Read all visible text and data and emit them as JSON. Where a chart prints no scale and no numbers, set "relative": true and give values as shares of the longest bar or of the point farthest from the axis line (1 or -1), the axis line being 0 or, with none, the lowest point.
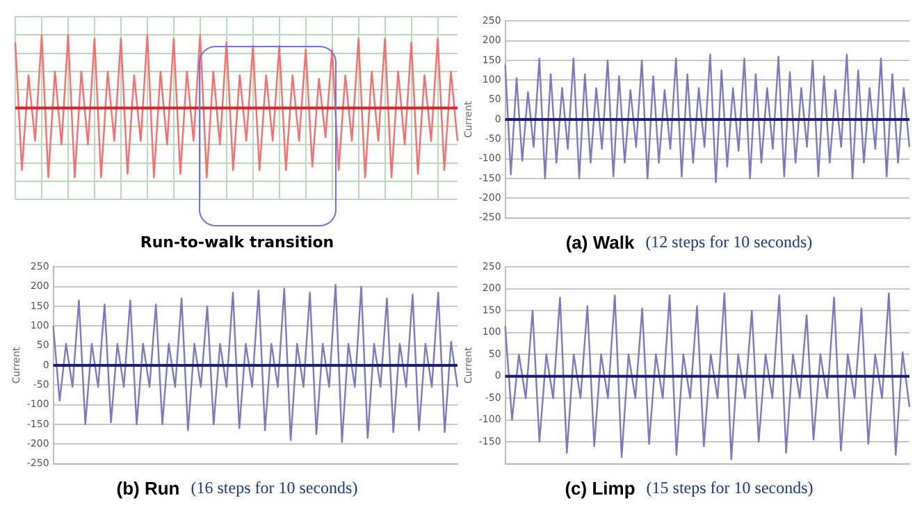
{
  "chart_data": [
    {
      "type": "line",
      "relative": true,
      "grid": true,
      "categories": [
        null,
        null,
        null,
        null,
        null,
        null,
        null,
        null,
        null,
        null,
        null,
        null,
        null,
        null,
        null,
        null,
        null,
        null,
        null,
        null,
        null,
        null,
        null,
        null,
        null,
        null,
        null,
        null,
        null,
        null,
        null,
        null,
        null,
        null,
        null,
        null,
        null,
        null,
        null,
        null,
        null,
        null,
        null,
        null,
        null,
        null,
        null,
        null,
        null,
        null,
        null,
        null,
        null,
        null,
        null,
        null,
        null,
        null,
        null,
        null,
        null,
        null,
        null,
        null,
        null,
        null,
        null,
        null
      ],
      "series": [
        {
          "color": "#ff6b6b",
          "values": [
            0.9,
            -0.85,
            0.45,
            -0.45,
            1,
            -0.95,
            0.5,
            -0.5,
            1,
            -0.95,
            0.5,
            -0.5,
            0.95,
            -0.95,
            0.5,
            -0.45,
            0.95,
            -0.9,
            0.45,
            -0.45,
            1,
            -0.95,
            0.5,
            -0.5,
            0.95,
            -0.9,
            0.5,
            -0.45,
            1,
            -0.95,
            0.5,
            -0.5,
            0.9,
            -0.85,
            0.45,
            -0.45,
            0.85,
            -0.85,
            0.45,
            -0.45,
            0.85,
            -0.85,
            0.45,
            -0.45,
            0.8,
            -0.8,
            0.4,
            -0.4,
            0.8,
            -0.85,
            0.45,
            -0.45,
            0.95,
            -0.95,
            0.5,
            -0.45,
            0.95,
            -0.95,
            0.5,
            -0.5,
            0.9,
            -0.9,
            0.45,
            -0.45,
            0.95,
            -0.85,
            0.5,
            -0.45
          ]
        }
      ],
      "ref_lines": [
        {
          "axis": "y",
          "value": 0,
          "color": "#e02020"
        }
      ],
      "annotations": [
        "Run-to-walk transition"
      ]
    },
    {
      "type": "line",
      "title": "(a) Walk",
      "subtitle": "(12 steps for 10 seconds)",
      "ylabel": "Current",
      "grid": "y",
      "tick_labels": "y",
      "ylim": [
        -250,
        250
      ],
      "yticks": [
        -250,
        -200,
        -150,
        -100,
        -50,
        0,
        50,
        100,
        150,
        200,
        250
      ],
      "categories": [
        null,
        null,
        null,
        null,
        null,
        null,
        null,
        null,
        null,
        null,
        null,
        null,
        null,
        null,
        null,
        null,
        null,
        null,
        null,
        null,
        null,
        null,
        null,
        null,
        null,
        null,
        null,
        null,
        null,
        null,
        null,
        null,
        null,
        null,
        null,
        null,
        null,
        null,
        null,
        null,
        null,
        null,
        null,
        null,
        null,
        null,
        null,
        null,
        null,
        null,
        null,
        null,
        null,
        null,
        null,
        null,
        null,
        null,
        null,
        null,
        null,
        null,
        null,
        null,
        null,
        null,
        null,
        null,
        null,
        null,
        null,
        null
      ],
      "series": [
        {
          "color": "#7a7ac4",
          "values": [
            140,
            -140,
            105,
            -105,
            70,
            -70,
            155,
            -150,
            115,
            -110,
            80,
            -75,
            155,
            -150,
            115,
            -110,
            80,
            -75,
            150,
            -145,
            110,
            -110,
            75,
            -70,
            150,
            -150,
            110,
            -110,
            75,
            -75,
            155,
            -145,
            115,
            -110,
            80,
            -70,
            165,
            -160,
            125,
            -120,
            80,
            -80,
            155,
            -150,
            115,
            -110,
            80,
            -75,
            160,
            -145,
            120,
            -110,
            80,
            -70,
            150,
            -145,
            110,
            -110,
            75,
            -70,
            165,
            -150,
            125,
            -110,
            80,
            -75,
            155,
            -145,
            115,
            -110,
            80,
            -70
          ]
        }
      ],
      "ref_lines": [
        {
          "axis": "y",
          "value": 0,
          "color": "#1a1a80"
        }
      ]
    },
    {
      "type": "line",
      "title": "(b) Run",
      "subtitle": "(16 steps for 10 seconds)",
      "ylabel": "Current",
      "grid": "y",
      "tick_labels": "y",
      "ylim": [
        -250,
        250
      ],
      "yticks": [
        -250,
        -200,
        -150,
        -100,
        -50,
        0,
        50,
        100,
        150,
        200,
        250
      ],
      "categories": [
        null,
        null,
        null,
        null,
        null,
        null,
        null,
        null,
        null,
        null,
        null,
        null,
        null,
        null,
        null,
        null,
        null,
        null,
        null,
        null,
        null,
        null,
        null,
        null,
        null,
        null,
        null,
        null,
        null,
        null,
        null,
        null,
        null,
        null,
        null,
        null,
        null,
        null,
        null,
        null,
        null,
        null,
        null,
        null,
        null,
        null,
        null,
        null,
        null,
        null,
        null,
        null,
        null,
        null,
        null,
        null,
        null,
        null,
        null,
        null,
        null,
        null,
        null,
        null
      ],
      "series": [
        {
          "color": "#7a7ac4",
          "values": [
            100,
            -90,
            55,
            -55,
            165,
            -150,
            55,
            -55,
            155,
            -145,
            55,
            -55,
            165,
            -150,
            55,
            -55,
            155,
            -150,
            55,
            -55,
            170,
            -165,
            55,
            -55,
            150,
            -150,
            55,
            -55,
            185,
            -160,
            55,
            -55,
            190,
            -165,
            55,
            -55,
            195,
            -190,
            55,
            -55,
            185,
            -175,
            55,
            -55,
            205,
            -195,
            55,
            -55,
            200,
            -185,
            55,
            -55,
            170,
            -170,
            55,
            -55,
            180,
            -165,
            55,
            -55,
            185,
            -170,
            60,
            -55
          ]
        }
      ],
      "ref_lines": [
        {
          "axis": "y",
          "value": 0,
          "color": "#1a1a80"
        }
      ]
    },
    {
      "type": "line",
      "title": "(c) Limp",
      "subtitle": "(15 steps for 10 seconds)",
      "ylabel": "Current",
      "grid": "y",
      "tick_labels": "y",
      "ylim": [
        -200,
        250
      ],
      "yticks": [
        -150,
        -100,
        -50,
        0,
        50,
        100,
        150,
        200,
        250
      ],
      "categories": [
        null,
        null,
        null,
        null,
        null,
        null,
        null,
        null,
        null,
        null,
        null,
        null,
        null,
        null,
        null,
        null,
        null,
        null,
        null,
        null,
        null,
        null,
        null,
        null,
        null,
        null,
        null,
        null,
        null,
        null,
        null,
        null,
        null,
        null,
        null,
        null,
        null,
        null,
        null,
        null,
        null,
        null,
        null,
        null,
        null,
        null,
        null,
        null,
        null,
        null,
        null,
        null,
        null,
        null,
        null,
        null,
        null,
        null,
        null,
        null
      ],
      "series": [
        {
          "color": "#7a7ac4",
          "values": [
            115,
            -100,
            50,
            -50,
            150,
            -150,
            50,
            -50,
            180,
            -175,
            50,
            -50,
            160,
            -160,
            50,
            -50,
            185,
            -185,
            50,
            -50,
            155,
            -155,
            50,
            -50,
            185,
            -180,
            50,
            -50,
            160,
            -160,
            50,
            -50,
            190,
            -190,
            50,
            -50,
            150,
            -150,
            50,
            -50,
            185,
            -175,
            50,
            -50,
            140,
            -145,
            50,
            -50,
            180,
            -170,
            50,
            -50,
            155,
            -155,
            50,
            -50,
            190,
            -180,
            55,
            -70
          ]
        }
      ],
      "ref_lines": [
        {
          "axis": "y",
          "value": 0,
          "color": "#1a1a80"
        }
      ]
    }
  ]
}
